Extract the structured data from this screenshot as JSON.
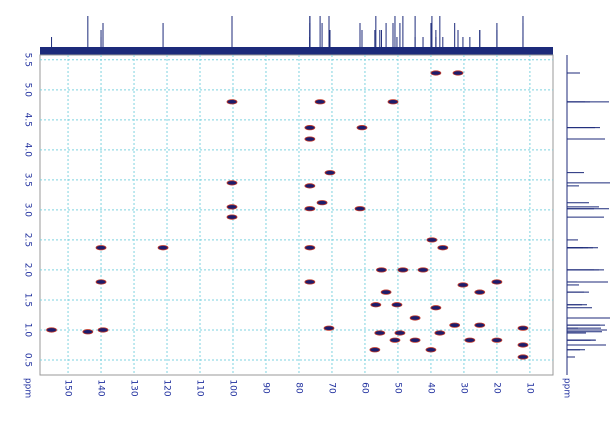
{
  "chart_data": {
    "type": "scatter",
    "x_label": "ppm",
    "y_label": "ppm",
    "x": [
      38.5,
      31.8,
      100.3,
      73.6,
      76.7,
      60.9,
      76.7,
      100.3,
      76.7,
      70.6,
      73,
      76.7,
      100.3,
      100.3,
      61.5,
      39.7,
      36.4,
      140,
      121.2,
      76.7,
      140,
      76.7,
      20,
      56.7,
      50.3,
      38.5,
      139.4,
      144,
      155,
      55.5,
      49.4,
      37.3,
      28.2,
      20,
      12.1,
      12.1,
      12.1,
      57,
      40,
      50.9,
      44.8,
      25.2,
      32.8,
      44.8,
      30.3,
      25.2,
      53.6,
      48.5,
      42.4,
      55,
      51.5,
      70.9
    ],
    "y": [
      5.28,
      5.28,
      4.8,
      4.8,
      4.37,
      4.37,
      4.18,
      3.45,
      3.4,
      3.62,
      3.12,
      3.02,
      3.05,
      2.88,
      3.02,
      2.5,
      2.37,
      2.37,
      2.37,
      2.37,
      1.8,
      1.8,
      1.8,
      1.42,
      1.42,
      1.37,
      1.0,
      0.97,
      1.0,
      0.95,
      0.95,
      0.95,
      0.83,
      0.83,
      1.03,
      0.75,
      0.55,
      0.67,
      0.67,
      0.83,
      0.83,
      1.08,
      1.08,
      1.2,
      1.75,
      1.63,
      1.63,
      2.0,
      2.0,
      2.0,
      4.8,
      1.03
    ],
    "color": "#1c1c6b",
    "edge_color": "#c0392b",
    "xlim": [
      158.5,
      3
    ],
    "ylim": [
      0.25,
      5.58
    ],
    "xticks": [
      150,
      140,
      130,
      120,
      110,
      100,
      90,
      80,
      70,
      60,
      50,
      40,
      30,
      20,
      10
    ],
    "yticks": [
      5.5,
      {
        "value": 5,
        "label": "5.0"
      },
      4.5,
      {
        "value": 4,
        "label": "4.0"
      },
      3.5,
      {
        "value": 3,
        "label": "3.0"
      },
      2.5,
      {
        "value": 2,
        "label": "2.0"
      },
      1.5,
      {
        "value": 1,
        "label": "1.0"
      },
      0.5
    ],
    "grid": true,
    "grid_color": "#7fd3e0"
  }
}
